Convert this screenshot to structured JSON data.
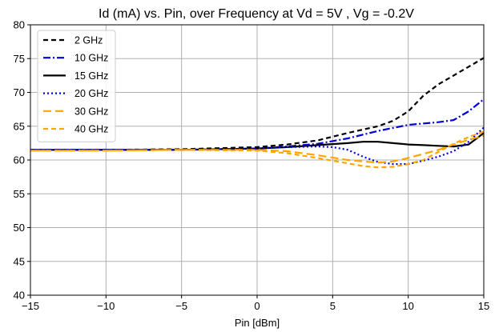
{
  "chart_data": {
    "type": "line",
    "title": "Id (mA) vs. Pin, over Frequency at Vd = 5V , Vg = -0.2V",
    "xlabel": "Pin [dBm]",
    "ylabel": "",
    "xlim": [
      -15,
      15
    ],
    "ylim": [
      40,
      80
    ],
    "x_ticks": [
      -15,
      -10,
      -5,
      0,
      5,
      10,
      15
    ],
    "x_tick_labels": [
      "−15",
      "−10",
      "−5",
      "0",
      "5",
      "10",
      "15"
    ],
    "y_ticks": [
      40,
      45,
      50,
      55,
      60,
      65,
      70,
      75,
      80
    ],
    "y_tick_labels": [
      "40",
      "45",
      "50",
      "55",
      "60",
      "65",
      "70",
      "75",
      "80"
    ],
    "grid": true,
    "legend_position": "top-left",
    "series": [
      {
        "name": "2 GHz",
        "color": "#000000",
        "dash": "6,4",
        "width": 2.2,
        "x": [
          -15,
          -10,
          -5,
          0,
          2,
          4,
          6,
          8,
          9,
          10,
          11,
          12,
          13,
          14,
          15
        ],
        "y": [
          61.5,
          61.5,
          61.6,
          61.9,
          62.3,
          62.9,
          64.0,
          65.0,
          65.8,
          67.2,
          69.5,
          71.2,
          72.5,
          73.8,
          75.1
        ]
      },
      {
        "name": "10 GHz",
        "color": "#0000dd",
        "dash": "9,3,2,3",
        "width": 2.2,
        "x": [
          -15,
          -10,
          -5,
          0,
          2,
          4,
          6,
          8,
          10,
          12,
          13,
          14,
          15
        ],
        "y": [
          61.5,
          61.5,
          61.5,
          61.7,
          62.0,
          62.4,
          63.2,
          64.3,
          65.2,
          65.6,
          65.9,
          67.2,
          69.0
        ]
      },
      {
        "name": "15 GHz",
        "color": "#000000",
        "dash": "",
        "width": 2.2,
        "x": [
          -15,
          -10,
          -5,
          0,
          2,
          4,
          6,
          7,
          8,
          9,
          10,
          11,
          12,
          13,
          14,
          15
        ],
        "y": [
          61.5,
          61.5,
          61.5,
          61.7,
          61.9,
          62.2,
          62.5,
          62.7,
          62.7,
          62.5,
          62.3,
          62.2,
          62.1,
          62.0,
          62.3,
          64.0
        ]
      },
      {
        "name": "20 GHz",
        "color": "#0000dd",
        "dash": "2,3",
        "width": 2.2,
        "x": [
          -15,
          -10,
          -5,
          0,
          2,
          4,
          5,
          6,
          7,
          8,
          9,
          10,
          11,
          12,
          13,
          14,
          15
        ],
        "y": [
          61.5,
          61.5,
          61.5,
          61.7,
          61.9,
          62.0,
          61.9,
          61.5,
          60.5,
          59.7,
          59.4,
          59.4,
          59.9,
          60.5,
          61.3,
          62.7,
          64.8
        ]
      },
      {
        "name": "30 GHz",
        "color": "#ffa500",
        "dash": "10,5",
        "width": 2.2,
        "x": [
          -15,
          -10,
          -5,
          0,
          2,
          4,
          6,
          8,
          9,
          10,
          11,
          12,
          13,
          14,
          15
        ],
        "y": [
          61.4,
          61.4,
          61.5,
          61.5,
          61.3,
          60.7,
          60.0,
          59.6,
          59.8,
          60.3,
          60.9,
          61.5,
          62.3,
          63.0,
          63.6
        ]
      },
      {
        "name": "40 GHz",
        "color": "#ffa500",
        "dash": "6,4",
        "width": 2.2,
        "x": [
          -15,
          -10,
          -5,
          0,
          2,
          4,
          6,
          7,
          8,
          9,
          10,
          11,
          12,
          13,
          14,
          15
        ],
        "y": [
          61.4,
          61.4,
          61.5,
          61.4,
          61.0,
          60.3,
          59.5,
          59.1,
          58.9,
          59.0,
          59.4,
          60.0,
          61.2,
          62.4,
          63.4,
          64.2
        ]
      }
    ]
  }
}
